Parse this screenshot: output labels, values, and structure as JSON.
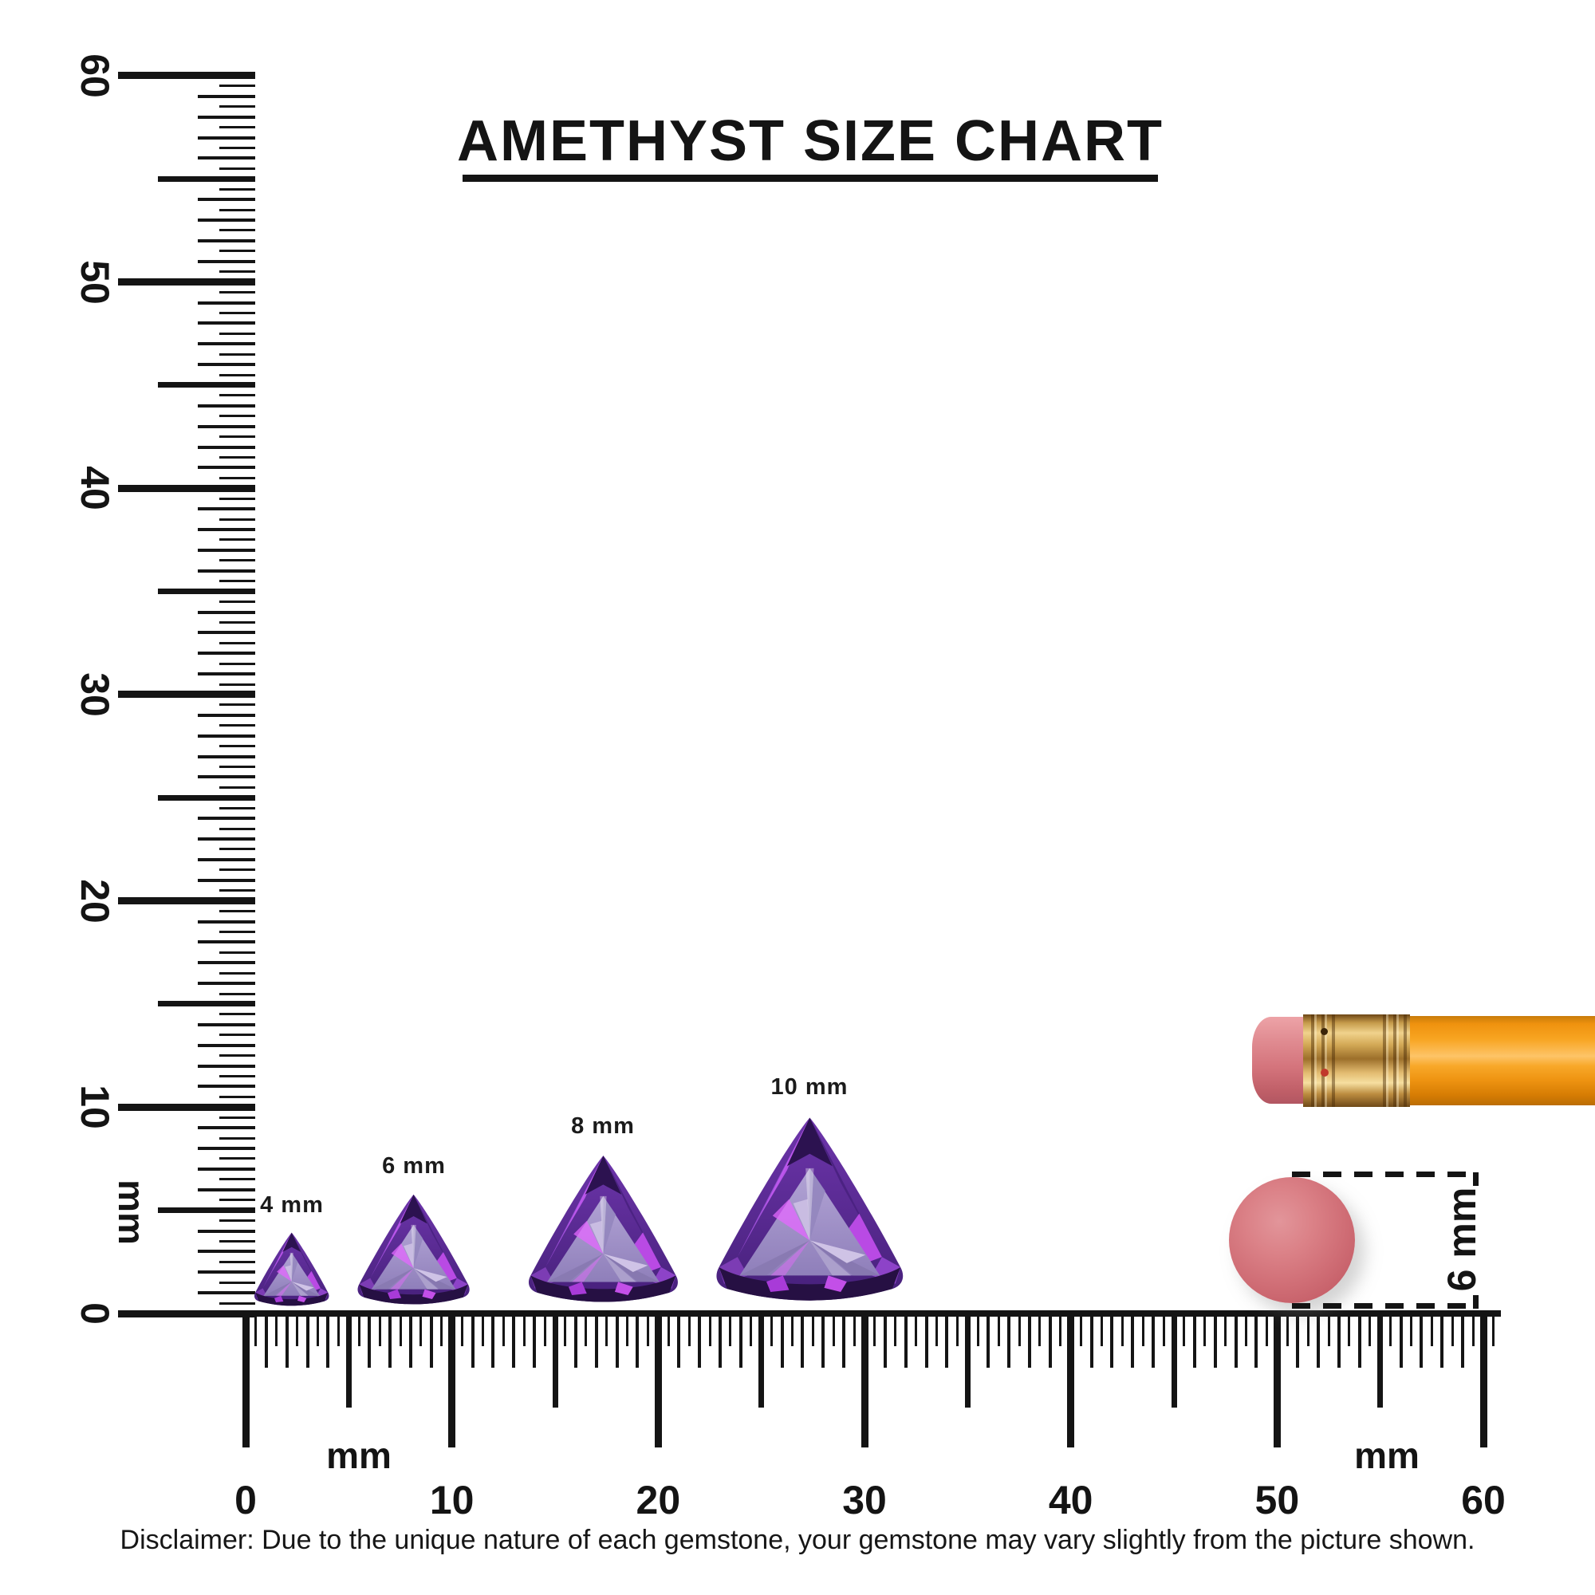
{
  "title": {
    "text": "AMETHYST SIZE CHART"
  },
  "rulers": {
    "vertical": {
      "unit": "mm",
      "min_mm": 0,
      "max_mm": 60,
      "tick_labels": [
        "0",
        "10",
        "20",
        "30",
        "40",
        "50",
        "60"
      ]
    },
    "horizontal": {
      "unit": "mm",
      "min_mm": 0,
      "max_mm": 60,
      "tick_labels": [
        "0",
        "10",
        "20",
        "30",
        "40",
        "50",
        "60"
      ]
    }
  },
  "gems": [
    {
      "label": "4 mm",
      "size_mm": 4
    },
    {
      "label": "6 mm",
      "size_mm": 6
    },
    {
      "label": "8 mm",
      "size_mm": 8
    },
    {
      "label": "10 mm",
      "size_mm": 10
    }
  ],
  "scale_annotation": {
    "label": "6 mm"
  },
  "disclaimer": "Disclaimer: Due to the unique nature of each gemstone, your gemstone may vary slightly from the picture shown.",
  "colors": {
    "ink": "#141414",
    "amethyst_deep": "#4b2282",
    "amethyst_bright": "#9b4fd6",
    "amethyst_flash": "#c158ef",
    "amethyst_table": "#a394c6",
    "amethyst_dark": "#261043",
    "pencil_orange": "#f8a522",
    "ferrule_gold": "#d2a855",
    "eraser_pink": "#d4747c",
    "eraser_top_red": "#d06e76"
  }
}
